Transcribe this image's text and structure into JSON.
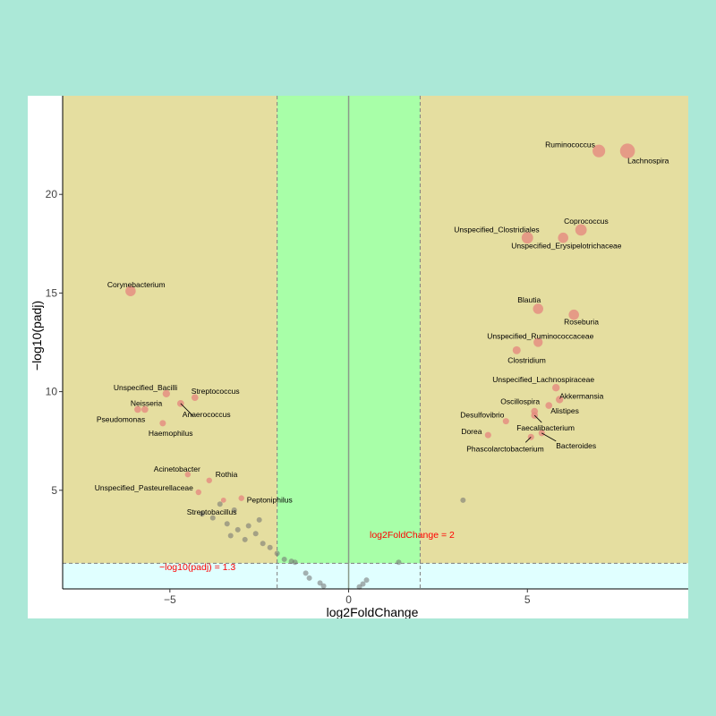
{
  "chart_data": {
    "type": "scatter",
    "title": "",
    "xlabel": "log2FoldChange",
    "ylabel": "−log10(padj)",
    "xlim": [
      -8,
      9.5
    ],
    "ylim": [
      0,
      25
    ],
    "xticks": [
      -5,
      0,
      5
    ],
    "yticks": [
      5,
      10,
      15,
      20
    ],
    "xtick_labels": [
      "−5",
      "0",
      "5"
    ],
    "ytick_labels": [
      "5",
      "10",
      "15",
      "20"
    ],
    "grid": false,
    "legend": "none",
    "thresholds": {
      "fold_change": 2,
      "padj_log": 1.3,
      "fold_label": "log2FoldChange = 2",
      "padj_label": "−log10(padj) = 1.3"
    },
    "colors": {
      "significant_region": "#e5dea0",
      "fold_band": "#a8ffa8",
      "below_threshold": "#e0ffff",
      "significant_point": "#e58a80",
      "other_point": "#707070",
      "threshold_line": "#7f7f7f",
      "annotation": "#ff0000"
    },
    "labeled_points": [
      {
        "name": "Ruminococcus",
        "x": 7.0,
        "y": 22.2,
        "size": 2.2
      },
      {
        "name": "Lachnospira",
        "x": 7.8,
        "y": 22.2,
        "size": 2.6
      },
      {
        "name": "Coprococcus",
        "x": 6.5,
        "y": 18.2,
        "size": 2.0
      },
      {
        "name": "Unspecified_Clostridiales",
        "x": 5.0,
        "y": 17.8,
        "size": 2.0
      },
      {
        "name": "Unspecified_Erysipelotrichaceae",
        "x": 6.0,
        "y": 17.8,
        "size": 1.8
      },
      {
        "name": "Corynebacterium",
        "x": -6.1,
        "y": 15.1,
        "size": 1.8
      },
      {
        "name": "Blautia",
        "x": 5.3,
        "y": 14.2,
        "size": 1.8
      },
      {
        "name": "Roseburia",
        "x": 6.3,
        "y": 13.9,
        "size": 1.8
      },
      {
        "name": "Unspecified_Ruminococcaceae",
        "x": 5.3,
        "y": 12.5,
        "size": 1.6
      },
      {
        "name": "Clostridium",
        "x": 4.7,
        "y": 12.1,
        "size": 1.4
      },
      {
        "name": "Unspecified_Lachnospiraceae",
        "x": 5.8,
        "y": 10.2,
        "size": 1.3
      },
      {
        "name": "Akkermansia",
        "x": 5.9,
        "y": 9.6,
        "size": 1.3
      },
      {
        "name": "Unspecified_Bacilli",
        "x": -5.1,
        "y": 9.9,
        "size": 1.3
      },
      {
        "name": "Streptococcus",
        "x": -4.3,
        "y": 9.7,
        "size": 1.2
      },
      {
        "name": "Neisseria",
        "x": -5.7,
        "y": 9.1,
        "size": 1.2
      },
      {
        "name": "Pseudomonas",
        "x": -5.9,
        "y": 9.1,
        "size": 1.2
      },
      {
        "name": "Anaerococcus",
        "x": -4.7,
        "y": 9.4,
        "size": 1.2
      },
      {
        "name": "Oscillospira",
        "x": 5.2,
        "y": 9.0,
        "size": 1.2
      },
      {
        "name": "Alistipes",
        "x": 5.6,
        "y": 9.3,
        "size": 1.2
      },
      {
        "name": "Desulfovibrio",
        "x": 4.4,
        "y": 8.5,
        "size": 1.1
      },
      {
        "name": "Faecalibacterium",
        "x": 5.2,
        "y": 8.8,
        "size": 1.2
      },
      {
        "name": "Haemophilus",
        "x": -5.2,
        "y": 8.4,
        "size": 1.1
      },
      {
        "name": "Dorea",
        "x": 3.9,
        "y": 7.8,
        "size": 1.1
      },
      {
        "name": "Bacteroides",
        "x": 5.4,
        "y": 7.9,
        "size": 1.1
      },
      {
        "name": "Phascolarctobacterium",
        "x": 5.1,
        "y": 7.7,
        "size": 1.1
      },
      {
        "name": "Acinetobacter",
        "x": -4.5,
        "y": 5.8,
        "size": 1.0
      },
      {
        "name": "Rothia",
        "x": -3.9,
        "y": 5.5,
        "size": 1.0
      },
      {
        "name": "Unspecified_Pasteurellaceae",
        "x": -4.2,
        "y": 4.9,
        "size": 1.0
      },
      {
        "name": "Peptoniphilus",
        "x": -3.0,
        "y": 4.6,
        "size": 1.0
      },
      {
        "name": "Streptobacillus",
        "x": -3.5,
        "y": 4.5,
        "size": 0.9
      }
    ],
    "other_points": [
      {
        "x": 3.2,
        "y": 4.5
      },
      {
        "x": -3.6,
        "y": 4.3
      },
      {
        "x": -3.2,
        "y": 4.0
      },
      {
        "x": -4.1,
        "y": 3.8
      },
      {
        "x": -3.8,
        "y": 3.6
      },
      {
        "x": -3.4,
        "y": 3.3
      },
      {
        "x": -2.5,
        "y": 3.5
      },
      {
        "x": -2.8,
        "y": 3.2
      },
      {
        "x": -3.1,
        "y": 3.0
      },
      {
        "x": -2.6,
        "y": 2.8
      },
      {
        "x": -3.3,
        "y": 2.7
      },
      {
        "x": -2.9,
        "y": 2.5
      },
      {
        "x": -2.4,
        "y": 2.3
      },
      {
        "x": -2.2,
        "y": 2.1
      },
      {
        "x": -2.0,
        "y": 1.8
      },
      {
        "x": -1.8,
        "y": 1.5
      },
      {
        "x": -1.6,
        "y": 1.4
      },
      {
        "x": -1.5,
        "y": 1.35
      },
      {
        "x": 1.4,
        "y": 1.35
      },
      {
        "x": -1.2,
        "y": 0.8
      },
      {
        "x": -1.1,
        "y": 0.55
      },
      {
        "x": -0.8,
        "y": 0.3
      },
      {
        "x": -0.7,
        "y": 0.15
      },
      {
        "x": 0.5,
        "y": 0.45
      },
      {
        "x": 0.4,
        "y": 0.25
      },
      {
        "x": 0.3,
        "y": 0.1
      }
    ]
  }
}
